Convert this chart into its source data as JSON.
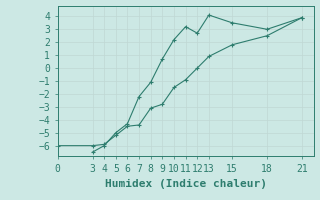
{
  "xlabel": "Humidex (Indice chaleur)",
  "ylabel": "",
  "background_color": "#cce8e4",
  "line_color": "#2e7d6e",
  "grid_color": "#c0d8d4",
  "xlim": [
    0,
    22
  ],
  "ylim": [
    -6.8,
    4.8
  ],
  "xticks": [
    0,
    3,
    4,
    5,
    6,
    7,
    8,
    9,
    10,
    11,
    12,
    13,
    15,
    18,
    21
  ],
  "yticks": [
    -6,
    -5,
    -4,
    -3,
    -2,
    -1,
    0,
    1,
    2,
    3,
    4
  ],
  "line1_x": [
    3,
    4,
    5,
    6,
    7,
    8,
    9,
    10,
    11,
    12,
    13,
    15,
    18,
    21
  ],
  "line1_y": [
    -6.5,
    -6.0,
    -5.0,
    -4.3,
    -2.2,
    -1.1,
    0.7,
    2.2,
    3.2,
    2.7,
    4.1,
    3.5,
    3.0,
    3.9
  ],
  "line2_x": [
    0,
    3,
    4,
    5,
    6,
    7,
    8,
    9,
    10,
    11,
    12,
    13,
    15,
    18,
    21
  ],
  "line2_y": [
    -6.0,
    -6.0,
    -5.9,
    -5.2,
    -4.5,
    -4.4,
    -3.1,
    -2.8,
    -1.5,
    -0.9,
    0.0,
    0.9,
    1.8,
    2.5,
    3.9
  ],
  "font_size": 7
}
